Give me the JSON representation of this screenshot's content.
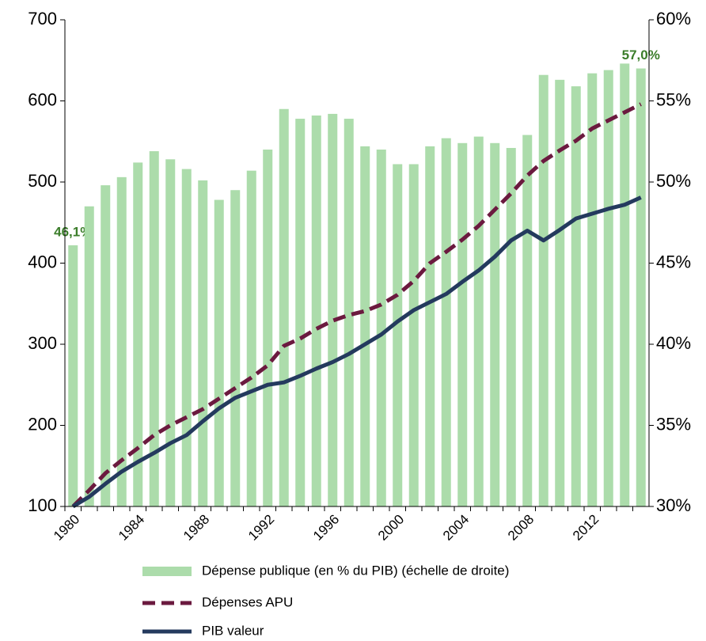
{
  "chart_data": {
    "type": "combo",
    "categories": [
      "1980",
      null,
      null,
      null,
      "1984",
      null,
      null,
      null,
      "1988",
      null,
      null,
      null,
      "1992",
      null,
      null,
      null,
      "1996",
      null,
      null,
      null,
      "2000",
      null,
      null,
      null,
      "2004",
      null,
      null,
      null,
      "2008",
      null,
      null,
      null,
      "2012",
      null,
      null,
      null
    ],
    "series": [
      {
        "name": "Dépense publique (en % du PIB) (échelle de droite)",
        "type": "bar",
        "axis": "y2",
        "color": "#acdcab",
        "values": [
          46.1,
          48.5,
          49.8,
          50.3,
          51.2,
          51.9,
          51.4,
          50.8,
          50.1,
          48.9,
          49.5,
          50.7,
          52.0,
          54.5,
          53.9,
          54.1,
          54.2,
          53.9,
          52.2,
          52.0,
          51.1,
          51.1,
          52.2,
          52.7,
          52.4,
          52.8,
          52.4,
          52.1,
          52.9,
          56.6,
          56.3,
          55.9,
          56.7,
          56.9,
          57.3,
          57.0
        ],
        "value_labels": [
          "46,1%",
          null,
          null,
          null,
          null,
          null,
          null,
          null,
          null,
          null,
          null,
          null,
          null,
          null,
          null,
          null,
          null,
          null,
          null,
          null,
          null,
          null,
          null,
          null,
          null,
          null,
          null,
          null,
          null,
          null,
          null,
          null,
          null,
          null,
          null,
          "57,0%"
        ]
      },
      {
        "name": "Dépenses APU",
        "type": "line",
        "dashed": true,
        "color": "#6b1a3f",
        "values": [
          100,
          120,
          141,
          157,
          172,
          188,
          200,
          210,
          220,
          233,
          246,
          259,
          274,
          298,
          307,
          319,
          329,
          336,
          341,
          349,
          361,
          378,
          400,
          414,
          429,
          446,
          466,
          486,
          508,
          526,
          539,
          551,
          566,
          576,
          586,
          596
        ]
      },
      {
        "name": "PIB valeur",
        "type": "line",
        "dashed": false,
        "color": "#243a5e",
        "values": [
          100,
          112,
          128,
          143,
          155,
          166,
          178,
          188,
          205,
          221,
          234,
          242,
          250,
          253,
          261,
          270,
          278,
          288,
          300,
          312,
          328,
          342,
          352,
          362,
          377,
          391,
          408,
          428,
          440,
          428,
          441,
          455,
          461,
          467,
          472,
          481
        ]
      }
    ],
    "ylim": [
      100,
      700
    ],
    "yticks": [
      100,
      200,
      300,
      400,
      500,
      600,
      700
    ],
    "y2lim": [
      30,
      60
    ],
    "y2ticks": [
      {
        "value": 30,
        "label": "30%"
      },
      {
        "value": 35,
        "label": "35%"
      },
      {
        "value": 40,
        "label": "40%"
      },
      {
        "value": 45,
        "label": "45%"
      },
      {
        "value": 50,
        "label": "50%"
      },
      {
        "value": 55,
        "label": "55%"
      },
      {
        "value": 60,
        "label": "60%"
      }
    ],
    "grid": false,
    "legend": "bottom"
  }
}
